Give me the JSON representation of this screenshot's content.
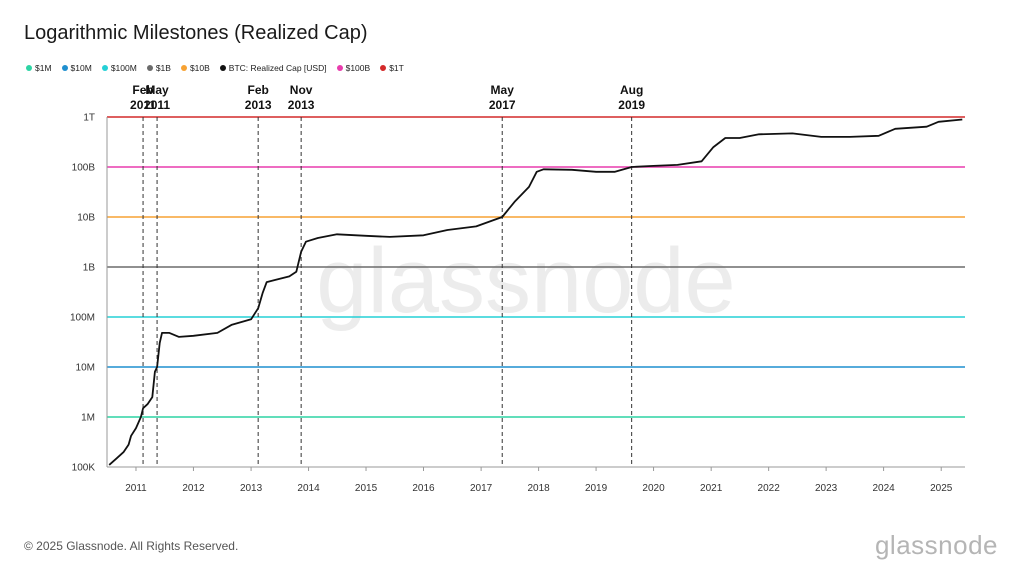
{
  "chart_data": {
    "type": "line",
    "title": "Logarithmic Milestones (Realized Cap)",
    "yscale": "log",
    "ylim": [
      100000,
      1000000000000
    ],
    "y_ticks": [
      {
        "value": 100000,
        "label": "100K"
      },
      {
        "value": 1000000,
        "label": "1M"
      },
      {
        "value": 10000000,
        "label": "10M"
      },
      {
        "value": 100000000,
        "label": "100M"
      },
      {
        "value": 1000000000,
        "label": "1B"
      },
      {
        "value": 10000000000,
        "label": "10B"
      },
      {
        "value": 100000000000,
        "label": "100B"
      },
      {
        "value": 1000000000000,
        "label": "1T"
      }
    ],
    "xlim": [
      "2010-07-01",
      "2025-06-01"
    ],
    "x_ticks": [
      "2011",
      "2012",
      "2013",
      "2014",
      "2015",
      "2016",
      "2017",
      "2018",
      "2019",
      "2020",
      "2021",
      "2022",
      "2023",
      "2024",
      "2025"
    ],
    "legend_position": "top-left",
    "legend": [
      {
        "label": "$1M",
        "color": "#2dd4a4"
      },
      {
        "label": "$10M",
        "color": "#1f8fcf"
      },
      {
        "label": "$100M",
        "color": "#25d0d6"
      },
      {
        "label": "$1B",
        "color": "#6b6b6b"
      },
      {
        "label": "$10B",
        "color": "#f7a233"
      },
      {
        "label": "BTC: Realized Cap [USD]",
        "color": "#111111"
      },
      {
        "label": "$100B",
        "color": "#e93cad"
      },
      {
        "label": "$1T",
        "color": "#d42a2a"
      }
    ],
    "milestones": [
      {
        "value": 1000000,
        "color": "#2dd4a4"
      },
      {
        "value": 10000000,
        "color": "#1f8fcf"
      },
      {
        "value": 100000000,
        "color": "#25d0d6"
      },
      {
        "value": 1000000000,
        "color": "#6b6b6b"
      },
      {
        "value": 10000000000,
        "color": "#f7a233"
      },
      {
        "value": 100000000000,
        "color": "#e93cad"
      },
      {
        "value": 1000000000000,
        "color": "#d42a2a"
      }
    ],
    "annotations": [
      {
        "date": "2011-02-15",
        "line1": "Feb",
        "line2": "2011"
      },
      {
        "date": "2011-05-15",
        "line1": "May",
        "line2": "2011"
      },
      {
        "date": "2013-02-15",
        "line1": "Feb",
        "line2": "2013"
      },
      {
        "date": "2013-11-15",
        "line1": "Nov",
        "line2": "2013"
      },
      {
        "date": "2017-05-15",
        "line1": "May",
        "line2": "2017"
      },
      {
        "date": "2019-08-15",
        "line1": "Aug",
        "line2": "2019"
      }
    ],
    "series": [
      {
        "name": "BTC: Realized Cap [USD]",
        "color": "#111111",
        "points": [
          [
            "2010-07-15",
            110000
          ],
          [
            "2010-09-01",
            150000
          ],
          [
            "2010-10-15",
            200000
          ],
          [
            "2010-11-15",
            280000
          ],
          [
            "2010-12-01",
            420000
          ],
          [
            "2011-01-01",
            600000
          ],
          [
            "2011-02-01",
            1000000
          ],
          [
            "2011-02-15",
            1500000
          ],
          [
            "2011-03-15",
            1800000
          ],
          [
            "2011-04-15",
            2500000
          ],
          [
            "2011-05-01",
            8000000
          ],
          [
            "2011-05-15",
            10000000
          ],
          [
            "2011-06-01",
            30000000
          ],
          [
            "2011-06-15",
            48000000
          ],
          [
            "2011-08-01",
            48000000
          ],
          [
            "2011-10-01",
            40000000
          ],
          [
            "2012-01-01",
            42000000
          ],
          [
            "2012-06-01",
            48000000
          ],
          [
            "2012-09-01",
            70000000
          ],
          [
            "2013-01-01",
            90000000
          ],
          [
            "2013-02-15",
            150000000
          ],
          [
            "2013-03-15",
            300000000
          ],
          [
            "2013-04-10",
            500000000
          ],
          [
            "2013-06-01",
            550000000
          ],
          [
            "2013-09-01",
            650000000
          ],
          [
            "2013-10-15",
            800000000
          ],
          [
            "2013-11-15",
            2000000000
          ],
          [
            "2013-12-15",
            3200000000
          ],
          [
            "2014-03-01",
            3800000000
          ],
          [
            "2014-07-01",
            4500000000
          ],
          [
            "2015-01-01",
            4200000000
          ],
          [
            "2015-06-01",
            4000000000
          ],
          [
            "2016-01-01",
            4300000000
          ],
          [
            "2016-06-01",
            5500000000
          ],
          [
            "2016-12-01",
            6500000000
          ],
          [
            "2017-05-15",
            10000000000
          ],
          [
            "2017-08-01",
            20000000000
          ],
          [
            "2017-11-01",
            40000000000
          ],
          [
            "2017-12-20",
            80000000000
          ],
          [
            "2018-02-01",
            90000000000
          ],
          [
            "2018-08-01",
            88000000000
          ],
          [
            "2019-01-01",
            80000000000
          ],
          [
            "2019-05-01",
            80000000000
          ],
          [
            "2019-08-15",
            100000000000
          ],
          [
            "2020-01-01",
            105000000000
          ],
          [
            "2020-06-01",
            110000000000
          ],
          [
            "2020-11-01",
            130000000000
          ],
          [
            "2021-01-15",
            250000000000
          ],
          [
            "2021-04-01",
            380000000000
          ],
          [
            "2021-07-01",
            380000000000
          ],
          [
            "2021-11-01",
            450000000000
          ],
          [
            "2022-06-01",
            470000000000
          ],
          [
            "2022-12-01",
            400000000000
          ],
          [
            "2023-06-01",
            400000000000
          ],
          [
            "2023-12-01",
            420000000000
          ],
          [
            "2024-03-15",
            580000000000
          ],
          [
            "2024-10-01",
            640000000000
          ],
          [
            "2024-12-15",
            800000000000
          ],
          [
            "2025-05-15",
            890000000000
          ]
        ]
      }
    ],
    "watermark": "glassnode"
  },
  "footer": {
    "copyright": "© 2025 Glassnode. All Rights Reserved.",
    "logo": "glassnode"
  }
}
